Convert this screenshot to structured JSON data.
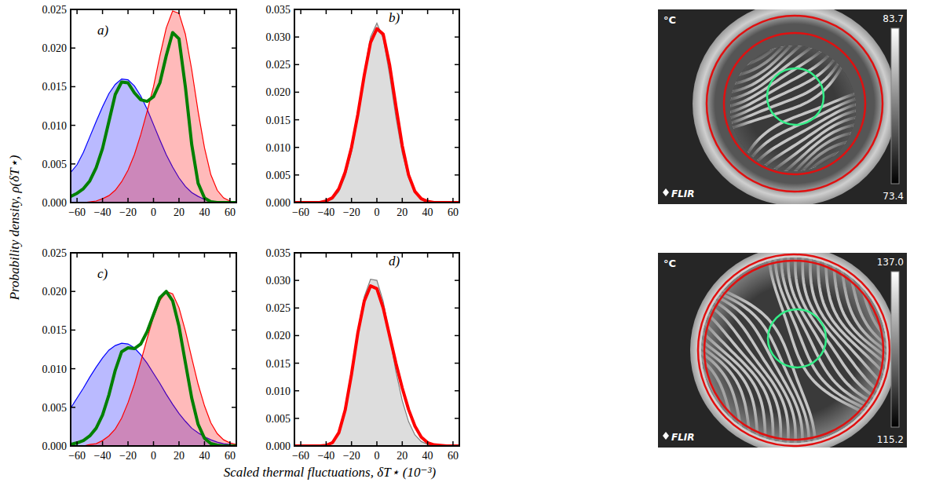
{
  "axis_titles": {
    "x": "Scaled thermal fluctuations, δT⋆ (10⁻³)",
    "y": "Probability density, ρ(δT⋆)"
  },
  "chart_data": [
    {
      "type": "line",
      "label": "a)",
      "x": [
        -65,
        -60,
        -55,
        -50,
        -45,
        -40,
        -35,
        -30,
        -25,
        -20,
        -15,
        -10,
        -5,
        0,
        5,
        10,
        15,
        20,
        25,
        30,
        35,
        40,
        45,
        50,
        55,
        60,
        65
      ],
      "xlim": [
        -65,
        65
      ],
      "xticks": [
        {
          "value": -60,
          "label": "−60"
        },
        {
          "value": -40,
          "label": "−40"
        },
        {
          "value": -20,
          "label": "−20"
        },
        0,
        20,
        40,
        60
      ],
      "ylim": [
        0,
        0.025
      ],
      "yticks": [
        {
          "value": 0,
          "label": "0.000"
        },
        {
          "value": 0.005,
          "label": "0.005"
        },
        {
          "value": 0.01,
          "label": "0.010"
        },
        {
          "value": 0.015,
          "label": "0.015"
        },
        {
          "value": 0.02,
          "label": "0.020"
        },
        {
          "value": 0.025,
          "label": "0.025"
        }
      ],
      "series": [
        {
          "type": "area",
          "color": "#0000ff",
          "values": [
            0.0039,
            0.0049,
            0.0065,
            0.0085,
            0.0105,
            0.0124,
            0.0141,
            0.0153,
            0.016,
            0.0159,
            0.0151,
            0.0138,
            0.0121,
            0.0101,
            0.0081,
            0.0062,
            0.0046,
            0.0032,
            0.0021,
            0.0013,
            0.0008,
            0.0004,
            0.0002,
            0.0001,
            0,
            0,
            0
          ]
        },
        {
          "type": "area",
          "color": "#ff0000",
          "values": [
            0,
            0,
            0,
            0.0001,
            0.0002,
            0.0005,
            0.0009,
            0.0016,
            0.0027,
            0.0042,
            0.0062,
            0.0088,
            0.0118,
            0.015,
            0.019,
            0.0226,
            0.0248,
            0.0245,
            0.0218,
            0.0172,
            0.0118,
            0.0071,
            0.0036,
            0.0016,
            0.0006,
            0.0002,
            0
          ]
        },
        {
          "type": "line",
          "color": "#008000",
          "values": [
            0.0008,
            0.0012,
            0.0018,
            0.0028,
            0.0045,
            0.007,
            0.0105,
            0.014,
            0.0156,
            0.0155,
            0.0142,
            0.0133,
            0.0131,
            0.0137,
            0.0155,
            0.019,
            0.022,
            0.0212,
            0.015,
            0.0075,
            0.0025,
            0.0006,
            0.0001,
            0,
            0,
            0,
            0
          ]
        }
      ]
    },
    {
      "type": "line",
      "label": "b)",
      "x": [
        -65,
        -60,
        -55,
        -50,
        -45,
        -40,
        -35,
        -30,
        -25,
        -20,
        -15,
        -10,
        -5,
        0,
        5,
        10,
        15,
        20,
        25,
        30,
        35,
        40,
        45,
        50,
        55,
        60,
        65
      ],
      "xlim": [
        -65,
        65
      ],
      "xticks": [
        {
          "value": -60,
          "label": "−60"
        },
        {
          "value": -40,
          "label": "−40"
        },
        {
          "value": -20,
          "label": "−20"
        },
        0,
        20,
        40,
        60
      ],
      "ylim": [
        0,
        0.035
      ],
      "yticks": [
        {
          "value": 0,
          "label": "0.000"
        },
        {
          "value": 0.005,
          "label": "0.005"
        },
        {
          "value": 0.01,
          "label": "0.010"
        },
        {
          "value": 0.015,
          "label": "0.015"
        },
        {
          "value": 0.02,
          "label": "0.020"
        },
        {
          "value": 0.025,
          "label": "0.025"
        },
        {
          "value": 0.03,
          "label": "0.030"
        },
        {
          "value": 0.035,
          "label": "0.035"
        }
      ],
      "series": [
        {
          "type": "area",
          "color": "#808080",
          "values": [
            0,
            0,
            0,
            0,
            0,
            0.0002,
            0.0006,
            0.002,
            0.0048,
            0.0092,
            0.0155,
            0.0235,
            0.03,
            0.0325,
            0.0298,
            0.0232,
            0.0155,
            0.009,
            0.0045,
            0.0018,
            0.0006,
            0.0002,
            0,
            0,
            0,
            0,
            0
          ]
        },
        {
          "type": "line",
          "color": "#ff0000",
          "values": [
            0,
            0,
            0,
            0,
            0,
            0.0003,
            0.0009,
            0.0025,
            0.0055,
            0.01,
            0.016,
            0.023,
            0.029,
            0.0315,
            0.0305,
            0.025,
            0.0175,
            0.0103,
            0.005,
            0.002,
            0.0007,
            0.0002,
            0,
            0,
            0,
            0,
            0
          ]
        }
      ]
    },
    {
      "type": "line",
      "label": "c)",
      "x": [
        -65,
        -60,
        -55,
        -50,
        -45,
        -40,
        -35,
        -30,
        -25,
        -20,
        -15,
        -10,
        -5,
        0,
        5,
        10,
        15,
        20,
        25,
        30,
        35,
        40,
        45,
        50,
        55,
        60,
        65
      ],
      "xlim": [
        -65,
        65
      ],
      "xticks": [
        {
          "value": -60,
          "label": "−60"
        },
        {
          "value": -40,
          "label": "−40"
        },
        {
          "value": -20,
          "label": "−20"
        },
        0,
        20,
        40,
        60
      ],
      "ylim": [
        0,
        0.025
      ],
      "yticks": [
        {
          "value": 0,
          "label": "0.000"
        },
        {
          "value": 0.005,
          "label": "0.005"
        },
        {
          "value": 0.01,
          "label": "0.010"
        },
        {
          "value": 0.015,
          "label": "0.015"
        },
        {
          "value": 0.02,
          "label": "0.020"
        },
        {
          "value": 0.025,
          "label": "0.025"
        }
      ],
      "series": [
        {
          "type": "area",
          "color": "#0000ff",
          "values": [
            0.0049,
            0.0062,
            0.0075,
            0.0089,
            0.0102,
            0.0114,
            0.0124,
            0.013,
            0.0133,
            0.0132,
            0.0127,
            0.0118,
            0.0107,
            0.0094,
            0.0081,
            0.0067,
            0.0054,
            0.0042,
            0.0032,
            0.0023,
            0.0017,
            0.0012,
            0.0008,
            0.0005,
            0.0003,
            0.0002,
            0.0001
          ]
        },
        {
          "type": "area",
          "color": "#ff0000",
          "values": [
            0,
            0,
            0,
            0.0002,
            0.0003,
            0.0007,
            0.0013,
            0.0022,
            0.0036,
            0.0056,
            0.008,
            0.0109,
            0.0139,
            0.0167,
            0.0188,
            0.02,
            0.0197,
            0.0179,
            0.0149,
            0.0114,
            0.008,
            0.0052,
            0.003,
            0.0016,
            0.0008,
            0.0004,
            0.0002
          ]
        },
        {
          "type": "line",
          "color": "#008000",
          "values": [
            0.0002,
            0.0004,
            0.0007,
            0.0013,
            0.0023,
            0.004,
            0.0066,
            0.0098,
            0.0122,
            0.0127,
            0.0126,
            0.0132,
            0.0148,
            0.017,
            0.0192,
            0.02,
            0.0188,
            0.0155,
            0.0108,
            0.0062,
            0.0028,
            0.001,
            0.0003,
            0.0001,
            0,
            0,
            0
          ]
        }
      ]
    },
    {
      "type": "line",
      "label": "d)",
      "x": [
        -65,
        -60,
        -55,
        -50,
        -45,
        -40,
        -35,
        -30,
        -25,
        -20,
        -15,
        -10,
        -5,
        0,
        5,
        10,
        15,
        20,
        25,
        30,
        35,
        40,
        45,
        50,
        55,
        60,
        65
      ],
      "xlim": [
        -65,
        65
      ],
      "xticks": [
        {
          "value": -60,
          "label": "−60"
        },
        {
          "value": -40,
          "label": "−40"
        },
        {
          "value": -20,
          "label": "−20"
        },
        0,
        20,
        40,
        60
      ],
      "ylim": [
        0,
        0.035
      ],
      "yticks": [
        {
          "value": 0,
          "label": "0.000"
        },
        {
          "value": 0.005,
          "label": "0.005"
        },
        {
          "value": 0.01,
          "label": "0.010"
        },
        {
          "value": 0.015,
          "label": "0.015"
        },
        {
          "value": 0.02,
          "label": "0.020"
        },
        {
          "value": 0.025,
          "label": "0.025"
        },
        {
          "value": 0.03,
          "label": "0.030"
        },
        {
          "value": 0.035,
          "label": "0.035"
        }
      ],
      "series": [
        {
          "type": "area",
          "color": "#808080",
          "values": [
            0,
            0,
            0,
            0,
            0,
            0.0002,
            0.0008,
            0.0027,
            0.0068,
            0.0135,
            0.021,
            0.027,
            0.0302,
            0.03,
            0.0262,
            0.02,
            0.0135,
            0.0082,
            0.0044,
            0.002,
            0.0008,
            0.0003,
            0.0001,
            0,
            0,
            0,
            0
          ]
        },
        {
          "type": "line",
          "color": "#ff0000",
          "values": [
            0,
            0,
            0,
            0,
            0,
            0.0001,
            0.0006,
            0.0024,
            0.0065,
            0.013,
            0.0205,
            0.0262,
            0.029,
            0.0285,
            0.025,
            0.02,
            0.015,
            0.0105,
            0.0066,
            0.0036,
            0.0016,
            0.0006,
            0.0002,
            0.0001,
            0,
            0,
            0
          ]
        }
      ]
    }
  ],
  "images": [
    {
      "unit": "°C",
      "scale_max": {
        "value": 83.7,
        "label": "83.7"
      },
      "scale_min": {
        "value": 73.4,
        "label": "73.4"
      },
      "logo": "FLIR"
    },
    {
      "unit": "°C",
      "scale_max": {
        "value": 137,
        "label": "137.0"
      },
      "scale_min": {
        "value": 115.2,
        "label": "115.2"
      },
      "logo": "FLIR"
    }
  ]
}
